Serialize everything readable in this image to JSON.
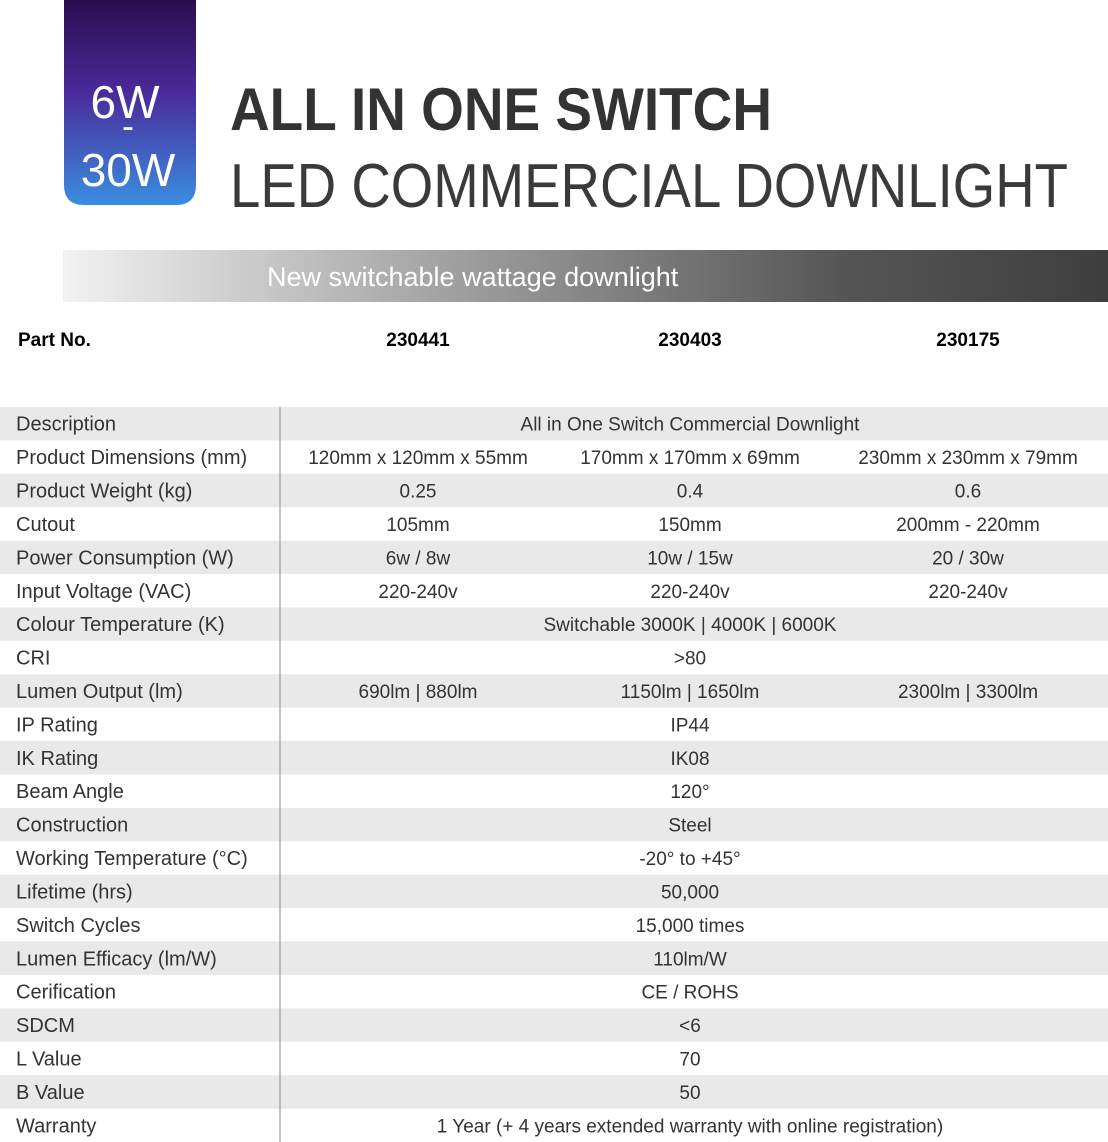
{
  "badge": {
    "top": "6W",
    "dash": "-",
    "bottom": "30W"
  },
  "header": {
    "title": "ALL IN ONE SWITCH",
    "subtitle": "LED COMMERCIAL DOWNLIGHT"
  },
  "banner": "New switchable wattage downlight",
  "table": {
    "head": {
      "label": "Part No.",
      "values": [
        "230441",
        "230403",
        "230175"
      ]
    },
    "rows": [
      {
        "label": "Description",
        "values": [
          "All in One Switch Commercial Downlight"
        ]
      },
      {
        "label": "Product Dimensions (mm)",
        "values": [
          "120mm x 120mm x 55mm",
          "170mm x 170mm x 69mm",
          "230mm x 230mm x 79mm"
        ]
      },
      {
        "label": "Product Weight (kg)",
        "values": [
          "0.25",
          "0.4",
          "0.6"
        ]
      },
      {
        "label": "Cutout",
        "values": [
          "105mm",
          "150mm",
          "200mm - 220mm"
        ]
      },
      {
        "label": "Power Consumption (W)",
        "values": [
          "6w / 8w",
          "10w / 15w",
          "20 / 30w"
        ]
      },
      {
        "label": "Input Voltage (VAC)",
        "values": [
          "220-240v",
          "220-240v",
          "220-240v"
        ]
      },
      {
        "label": "Colour Temperature (K)",
        "values": [
          "Switchable 3000K | 4000K | 6000K"
        ]
      },
      {
        "label": "CRI",
        "values": [
          ">80"
        ]
      },
      {
        "label": "Lumen Output (lm)",
        "values": [
          "690lm | 880lm",
          "1150lm | 1650lm",
          "2300lm | 3300lm"
        ]
      },
      {
        "label": "IP Rating",
        "values": [
          "IP44"
        ]
      },
      {
        "label": "IK Rating",
        "values": [
          "IK08"
        ]
      },
      {
        "label": "Beam Angle",
        "values": [
          "120°"
        ]
      },
      {
        "label": "Construction",
        "values": [
          "Steel"
        ]
      },
      {
        "label": "Working Temperature (°C)",
        "values": [
          "-20° to +45°"
        ]
      },
      {
        "label": "Lifetime (hrs)",
        "values": [
          "50,000"
        ]
      },
      {
        "label": "Switch Cycles",
        "values": [
          "15,000 times"
        ]
      },
      {
        "label": "Lumen Efficacy (lm/W)",
        "values": [
          "110lm/W"
        ]
      },
      {
        "label": "Cerification",
        "values": [
          "CE / ROHS"
        ]
      },
      {
        "label": "SDCM",
        "values": [
          "<6"
        ]
      },
      {
        "label": "L Value",
        "values": [
          "70"
        ]
      },
      {
        "label": "B Value",
        "values": [
          "50"
        ]
      },
      {
        "label": "Warranty",
        "values": [
          "1 Year (+ 4 years extended warranty with online registration)"
        ]
      }
    ]
  }
}
